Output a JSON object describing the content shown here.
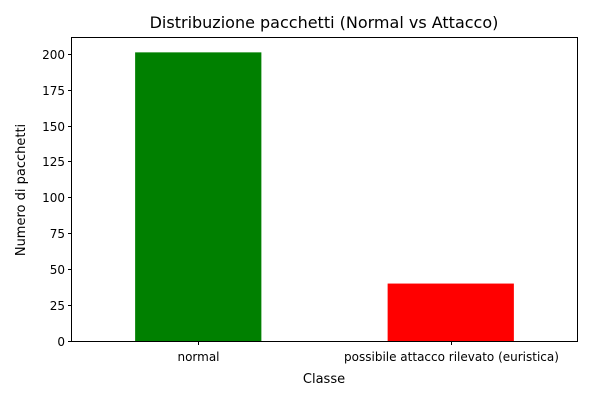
{
  "chart_data": {
    "type": "bar",
    "title": "Distribuzione pacchetti (Normal vs Attacco)",
    "xlabel": "Classe",
    "ylabel": "Numero di pacchetti",
    "categories": [
      "normal",
      "possibile attacco rilevato (euristica)"
    ],
    "values": [
      201,
      40
    ],
    "colors": [
      "#008000",
      "#ff0000"
    ],
    "ylim": [
      0,
      211
    ],
    "yticks": [
      0,
      25,
      50,
      75,
      100,
      125,
      150,
      175,
      200
    ],
    "grid": false,
    "legend": "none"
  }
}
